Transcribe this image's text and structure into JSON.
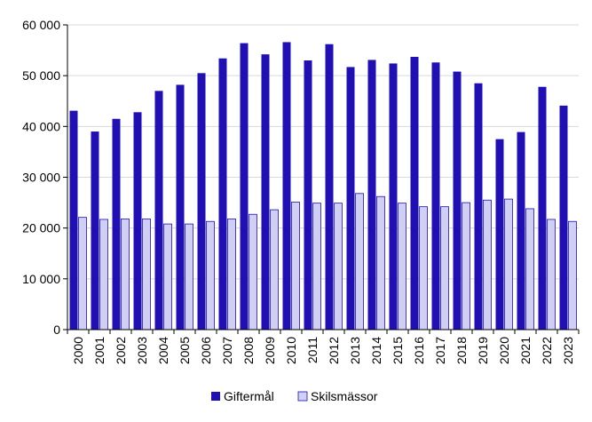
{
  "chart_data": {
    "type": "bar",
    "categories": [
      "2000",
      "2001",
      "2002",
      "2003",
      "2004",
      "2005",
      "2006",
      "2007",
      "2008",
      "2009",
      "2010",
      "2011",
      "2012",
      "2013",
      "2014",
      "2015",
      "2016",
      "2017",
      "2018",
      "2019",
      "2020",
      "2021",
      "2022",
      "2023"
    ],
    "series": [
      {
        "name": "Giftermål",
        "color": "#1f0fb4",
        "values": [
          43100,
          39000,
          41500,
          42800,
          47000,
          48200,
          50500,
          53400,
          56400,
          54200,
          56600,
          53000,
          56200,
          51700,
          53100,
          52400,
          53700,
          52600,
          50800,
          48500,
          37500,
          38900,
          47800,
          44100
        ]
      },
      {
        "name": "Skilsmässor",
        "color": "#cfd0f2",
        "values": [
          22100,
          21700,
          21800,
          21800,
          20800,
          20800,
          21300,
          21800,
          22700,
          23600,
          25100,
          24900,
          24900,
          26800,
          26200,
          24900,
          24200,
          24200,
          25000,
          25500,
          25700,
          23800,
          21700,
          21300
        ]
      }
    ],
    "y_ticks": [
      "0",
      "10 000",
      "20 000",
      "30 000",
      "40 000",
      "50 000",
      "60 000"
    ],
    "ylim": [
      0,
      60000
    ],
    "grid": true,
    "legend_position": "bottom",
    "title": "",
    "xlabel": "",
    "ylabel": ""
  }
}
